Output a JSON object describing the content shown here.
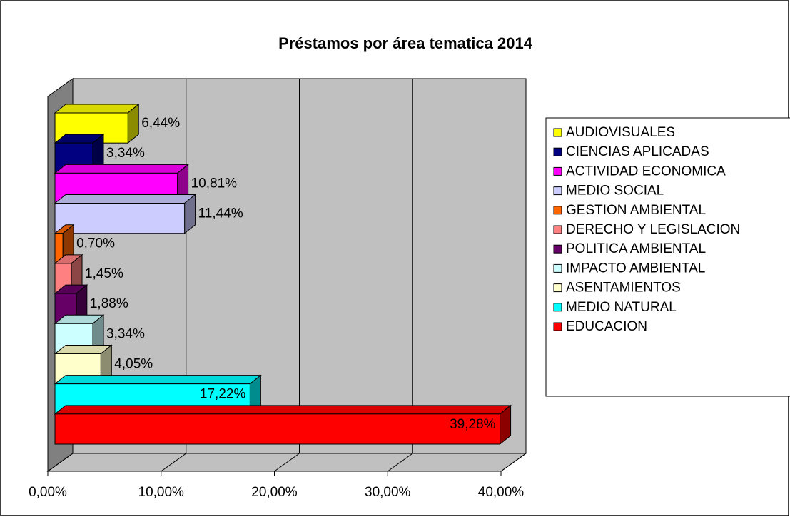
{
  "chart_data": {
    "type": "bar3d_horizontal",
    "title": "Préstamos por área tematica 2014",
    "categories": [
      "AUDIOVISUALES",
      "CIENCIAS APLICADAS",
      "ACTIVIDAD ECONOMICA",
      "MEDIO SOCIAL",
      "GESTION AMBIENTAL",
      "DERECHO Y LEGISLACION",
      "POLITICA AMBIENTAL",
      "IMPACTO AMBIENTAL",
      "ASENTAMIENTOS",
      "MEDIO NATURAL",
      "EDUCACION"
    ],
    "values": [
      6.44,
      3.34,
      10.81,
      11.44,
      0.7,
      1.45,
      1.88,
      3.34,
      4.05,
      17.22,
      39.28
    ],
    "value_labels": [
      "6,44%",
      "3,34%",
      "10,81%",
      "11,44%",
      "0,70%",
      "1,45%",
      "1,88%",
      "3,34%",
      "4,05%",
      "17,22%",
      "39,28%"
    ],
    "colors": [
      "#ffff00",
      "#000080",
      "#ff00ff",
      "#ccccff",
      "#ff6600",
      "#ff8080",
      "#660066",
      "#ccffff",
      "#ffffcc",
      "#00ffff",
      "#ff0000"
    ],
    "xlim": [
      0,
      40
    ],
    "xticks": [
      {
        "value": 0,
        "label": "0,00%"
      },
      {
        "value": 10,
        "label": "10,00%"
      },
      {
        "value": 20,
        "label": "20,00%"
      },
      {
        "value": 30,
        "label": "30,00%"
      },
      {
        "value": 40,
        "label": "40,00%"
      }
    ],
    "grid": true,
    "legend": "right"
  }
}
